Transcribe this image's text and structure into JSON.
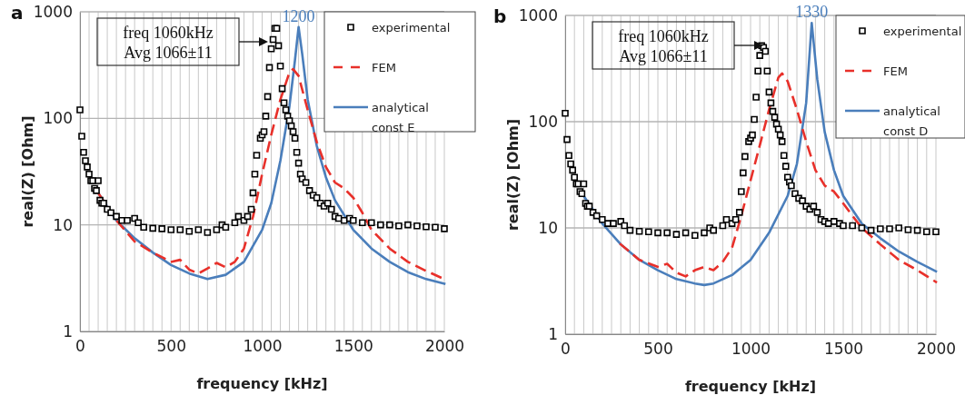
{
  "chart_data": [
    {
      "type": "line",
      "title": "a",
      "xlabel": "frequency [kHz]",
      "ylabel": "real(Z) [Ohm]",
      "log": "y",
      "xlim": [
        0,
        2000
      ],
      "ylim": [
        1,
        1000
      ],
      "xticks": [
        0,
        {
          "value": 50,
          "label": null
        },
        {
          "value": 100,
          "label": null
        },
        {
          "value": 150,
          "label": null
        },
        {
          "value": 200,
          "label": null
        },
        {
          "value": 250,
          "label": null
        },
        {
          "value": 300,
          "label": null
        },
        {
          "value": 350,
          "label": null
        },
        {
          "value": 400,
          "label": null
        },
        {
          "value": 450,
          "label": null
        },
        500,
        {
          "value": 550,
          "label": null
        },
        {
          "value": 600,
          "label": null
        },
        {
          "value": 650,
          "label": null
        },
        {
          "value": 700,
          "label": null
        },
        {
          "value": 750,
          "label": null
        },
        {
          "value": 800,
          "label": null
        },
        {
          "value": 850,
          "label": null
        },
        {
          "value": 900,
          "label": null
        },
        {
          "value": 950,
          "label": null
        },
        1000,
        {
          "value": 1050,
          "label": null
        },
        {
          "value": 1100,
          "label": null
        },
        {
          "value": 1150,
          "label": null
        },
        {
          "value": 1200,
          "label": null
        },
        {
          "value": 1250,
          "label": null
        },
        {
          "value": 1300,
          "label": null
        },
        {
          "value": 1350,
          "label": null
        },
        {
          "value": 1400,
          "label": null
        },
        {
          "value": 1450,
          "label": null
        },
        1500,
        {
          "value": 1550,
          "label": null
        },
        {
          "value": 1600,
          "label": null
        },
        {
          "value": 1650,
          "label": null
        },
        {
          "value": 1700,
          "label": null
        },
        {
          "value": 1750,
          "label": null
        },
        {
          "value": 1800,
          "label": null
        },
        {
          "value": 1850,
          "label": null
        },
        {
          "value": 1900,
          "label": null
        },
        {
          "value": 1950,
          "label": null
        },
        2000
      ],
      "yticks": [
        1,
        10,
        100,
        1000
      ],
      "grid": true,
      "legend": "top right",
      "series": [
        {
          "name": "experimental",
          "type": "scatter",
          "marker": "square",
          "color": "#000000",
          "x": [
            0,
            10,
            20,
            30,
            40,
            50,
            60,
            70,
            80,
            90,
            100,
            110,
            120,
            130,
            150,
            170,
            200,
            230,
            260,
            300,
            320,
            350,
            400,
            450,
            500,
            550,
            600,
            650,
            700,
            750,
            780,
            800,
            850,
            870,
            900,
            920,
            940,
            950,
            960,
            970,
            990,
            1000,
            1010,
            1020,
            1030,
            1040,
            1050,
            1060,
            1070,
            1080,
            1090,
            1100,
            1110,
            1120,
            1130,
            1140,
            1150,
            1160,
            1170,
            1180,
            1190,
            1200,
            1210,
            1220,
            1240,
            1260,
            1280,
            1300,
            1320,
            1340,
            1360,
            1380,
            1400,
            1420,
            1450,
            1480,
            1500,
            1550,
            1600,
            1650,
            1700,
            1750,
            1800,
            1850,
            1900,
            1950,
            2000
          ],
          "values": [
            120,
            68,
            48,
            40,
            35,
            30,
            26,
            26,
            22,
            21,
            26,
            17,
            16,
            16,
            14,
            13,
            12,
            11,
            11,
            11.5,
            10.5,
            9.5,
            9.3,
            9.2,
            9,
            9,
            8.7,
            9,
            8.5,
            9,
            10,
            9.5,
            10.5,
            12,
            11,
            12,
            14,
            20,
            30,
            45,
            65,
            70,
            75,
            105,
            160,
            300,
            450,
            550,
            700,
            700,
            480,
            310,
            190,
            140,
            120,
            105,
            95,
            85,
            75,
            65,
            48,
            38,
            30,
            27,
            25,
            21,
            19,
            18,
            16,
            15,
            16,
            14,
            12,
            11.5,
            11,
            11.5,
            11,
            10.5,
            10.5,
            10,
            10,
            9.8,
            10,
            9.8,
            9.6,
            9.5,
            9.2
          ]
        },
        {
          "name": "FEM",
          "type": "line",
          "line_style": "dashed",
          "color": "#e8302a",
          "x": [
            100,
            200,
            300,
            400,
            500,
            550,
            600,
            650,
            700,
            750,
            800,
            850,
            900,
            950,
            1000,
            1050,
            1100,
            1150,
            1170,
            1200,
            1250,
            1300,
            1350,
            1400,
            1450,
            1500,
            1550,
            1600,
            1700,
            1800,
            1900,
            2000
          ],
          "values": [
            20,
            11,
            7,
            5.5,
            4.5,
            4.7,
            3.8,
            3.5,
            3.9,
            4.4,
            4,
            4.5,
            6,
            12,
            30,
            70,
            150,
            270,
            290,
            250,
            120,
            60,
            35,
            25,
            22,
            18,
            13,
            9,
            6,
            4.5,
            3.7,
            3.1
          ]
        },
        {
          "name": "analytical const E",
          "type": "line",
          "line_style": "solid",
          "color": "#4a7ebb",
          "x": [
            100,
            200,
            300,
            400,
            500,
            600,
            700,
            800,
            900,
            1000,
            1050,
            1100,
            1150,
            1180,
            1200,
            1220,
            1250,
            1300,
            1350,
            1400,
            1500,
            1600,
            1700,
            1800,
            1900,
            2000
          ],
          "values": [
            20,
            11,
            7.5,
            5.5,
            4.2,
            3.5,
            3.1,
            3.4,
            4.5,
            9,
            16,
            40,
            130,
            350,
            720,
            400,
            150,
            55,
            28,
            17,
            9,
            6,
            4.5,
            3.6,
            3.1,
            2.8
          ]
        }
      ],
      "annotations": [
        "freq 1060kHz\nAvg 1066±11",
        {
          "text": "1200",
          "x": 1200,
          "y": 720
        }
      ]
    },
    {
      "type": "line",
      "title": "b",
      "xlabel": "frequency [kHz]",
      "ylabel": "real(Z) [Ohm]",
      "log": "y",
      "xlim": [
        0,
        2000
      ],
      "ylim": [
        1,
        1000
      ],
      "xticks": [
        0,
        {
          "value": 50,
          "label": null
        },
        {
          "value": 100,
          "label": null
        },
        {
          "value": 150,
          "label": null
        },
        {
          "value": 200,
          "label": null
        },
        {
          "value": 250,
          "label": null
        },
        {
          "value": 300,
          "label": null
        },
        {
          "value": 350,
          "label": null
        },
        {
          "value": 400,
          "label": null
        },
        {
          "value": 450,
          "label": null
        },
        500,
        {
          "value": 550,
          "label": null
        },
        {
          "value": 600,
          "label": null
        },
        {
          "value": 650,
          "label": null
        },
        {
          "value": 700,
          "label": null
        },
        {
          "value": 750,
          "label": null
        },
        {
          "value": 800,
          "label": null
        },
        {
          "value": 850,
          "label": null
        },
        {
          "value": 900,
          "label": null
        },
        {
          "value": 950,
          "label": null
        },
        1000,
        {
          "value": 1050,
          "label": null
        },
        {
          "value": 1100,
          "label": null
        },
        {
          "value": 1150,
          "label": null
        },
        {
          "value": 1200,
          "label": null
        },
        {
          "value": 1250,
          "label": null
        },
        {
          "value": 1300,
          "label": null
        },
        {
          "value": 1350,
          "label": null
        },
        {
          "value": 1400,
          "label": null
        },
        {
          "value": 1450,
          "label": null
        },
        1500,
        {
          "value": 1550,
          "label": null
        },
        {
          "value": 1600,
          "label": null
        },
        {
          "value": 1650,
          "label": null
        },
        {
          "value": 1700,
          "label": null
        },
        {
          "value": 1750,
          "label": null
        },
        {
          "value": 1800,
          "label": null
        },
        {
          "value": 1850,
          "label": null
        },
        {
          "value": 1900,
          "label": null
        },
        {
          "value": 1950,
          "label": null
        },
        2000
      ],
      "yticks": [
        1,
        10,
        100,
        1000
      ],
      "grid": true,
      "legend": "top right",
      "series": [
        {
          "name": "experimental",
          "type": "scatter",
          "marker": "square",
          "color": "#000000",
          "x": [
            0,
            10,
            20,
            30,
            40,
            50,
            60,
            70,
            80,
            90,
            100,
            110,
            120,
            130,
            150,
            170,
            200,
            230,
            260,
            300,
            320,
            350,
            400,
            450,
            500,
            550,
            600,
            650,
            700,
            750,
            780,
            800,
            850,
            870,
            900,
            920,
            940,
            950,
            960,
            970,
            990,
            1000,
            1010,
            1020,
            1030,
            1040,
            1050,
            1060,
            1070,
            1080,
            1090,
            1100,
            1110,
            1120,
            1130,
            1140,
            1150,
            1160,
            1170,
            1180,
            1190,
            1200,
            1210,
            1220,
            1240,
            1260,
            1280,
            1300,
            1320,
            1340,
            1360,
            1380,
            1400,
            1420,
            1450,
            1480,
            1500,
            1550,
            1600,
            1650,
            1700,
            1750,
            1800,
            1850,
            1900,
            1950,
            2000
          ],
          "values": [
            120,
            68,
            48,
            40,
            35,
            30,
            26,
            26,
            22,
            21,
            26,
            17,
            16,
            16,
            14,
            13,
            12,
            11,
            11,
            11.5,
            10.5,
            9.5,
            9.3,
            9.2,
            9,
            9,
            8.7,
            9,
            8.5,
            9,
            10,
            9.5,
            10.5,
            12,
            11,
            12,
            14,
            22,
            33,
            47,
            65,
            70,
            75,
            105,
            170,
            300,
            420,
            520,
            500,
            460,
            300,
            190,
            150,
            125,
            110,
            95,
            85,
            75,
            65,
            48,
            38,
            30,
            27,
            25,
            21,
            19,
            18,
            16,
            15,
            16,
            14,
            12,
            11.5,
            11,
            11.5,
            11,
            10.5,
            10.5,
            10,
            9.5,
            9.8,
            9.8,
            10,
            9.6,
            9.5,
            9.2,
            9.2
          ]
        },
        {
          "name": "FEM",
          "type": "line",
          "line_style": "dashed",
          "color": "#e8302a",
          "x": [
            300,
            400,
            500,
            550,
            600,
            650,
            700,
            750,
            800,
            850,
            900,
            950,
            1000,
            1050,
            1100,
            1150,
            1170,
            1200,
            1250,
            1300,
            1350,
            1400,
            1450,
            1500,
            1550,
            1600,
            1700,
            1800,
            1900,
            2000
          ],
          "values": [
            7,
            5,
            4.3,
            4.6,
            3.8,
            3.5,
            4,
            4.3,
            4,
            4.8,
            6.5,
            13,
            28,
            60,
            130,
            260,
            285,
            240,
            130,
            65,
            35,
            25,
            22,
            17,
            13,
            10,
            7,
            5,
            4,
            3.1
          ]
        },
        {
          "name": "analytical const D",
          "type": "line",
          "line_style": "solid",
          "color": "#4a7ebb",
          "x": [
            100,
            200,
            300,
            400,
            500,
            600,
            700,
            750,
            800,
            900,
            1000,
            1100,
            1200,
            1250,
            1300,
            1330,
            1360,
            1400,
            1450,
            1500,
            1600,
            1700,
            1800,
            1900,
            2000
          ],
          "values": [
            20,
            11,
            7,
            5,
            4,
            3.3,
            3,
            2.9,
            3,
            3.6,
            5,
            9,
            20,
            40,
            150,
            850,
            250,
            80,
            35,
            20,
            11,
            8,
            6,
            4.8,
            3.9
          ]
        }
      ],
      "annotations": [
        "freq 1060kHz\nAvg 1066±11",
        {
          "text": "1330",
          "x": 1330,
          "y": 850
        }
      ]
    }
  ]
}
